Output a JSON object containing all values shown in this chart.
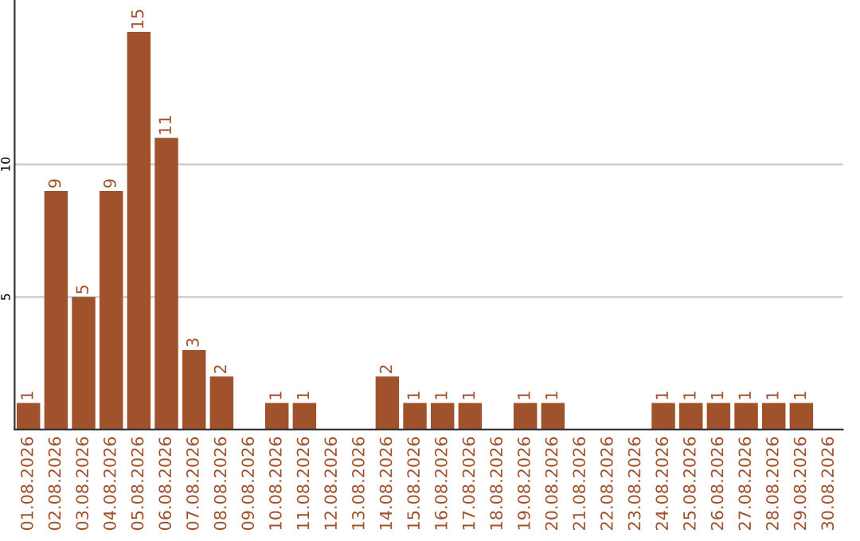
{
  "chart_data": {
    "type": "bar",
    "categories": [
      "01.08.2026",
      "02.08.2026",
      "03.08.2026",
      "04.08.2026",
      "05.08.2026",
      "06.08.2026",
      "07.08.2026",
      "08.08.2026",
      "09.08.2026",
      "10.08.2026",
      "11.08.2026",
      "12.08.2026",
      "13.08.2026",
      "14.08.2026",
      "15.08.2026",
      "16.08.2026",
      "17.08.2026",
      "18.08.2026",
      "19.08.2026",
      "20.08.2026",
      "21.08.2026",
      "22.08.2026",
      "23.08.2026",
      "24.08.2026",
      "25.08.2026",
      "26.08.2026",
      "27.08.2026",
      "28.08.2026",
      "29.08.2026",
      "30.08.2026"
    ],
    "values": [
      1,
      9,
      5,
      9,
      15,
      11,
      3,
      2,
      0,
      1,
      1,
      0,
      0,
      2,
      1,
      1,
      1,
      0,
      1,
      1,
      0,
      0,
      0,
      1,
      1,
      1,
      1,
      1,
      1,
      0
    ],
    "value_labels": [
      "1",
      "9",
      "5",
      "9",
      "15",
      "11",
      "3",
      "2",
      null,
      "1",
      "1",
      null,
      null,
      "2",
      "1",
      "1",
      "1",
      null,
      "1",
      "1",
      null,
      null,
      null,
      "1",
      "1",
      "1",
      "1",
      "1",
      "1",
      null
    ],
    "color": "#a0522d",
    "ylim": [
      0,
      16.2
    ],
    "yticks": [
      5,
      10
    ],
    "grid": "y",
    "legend": false
  }
}
